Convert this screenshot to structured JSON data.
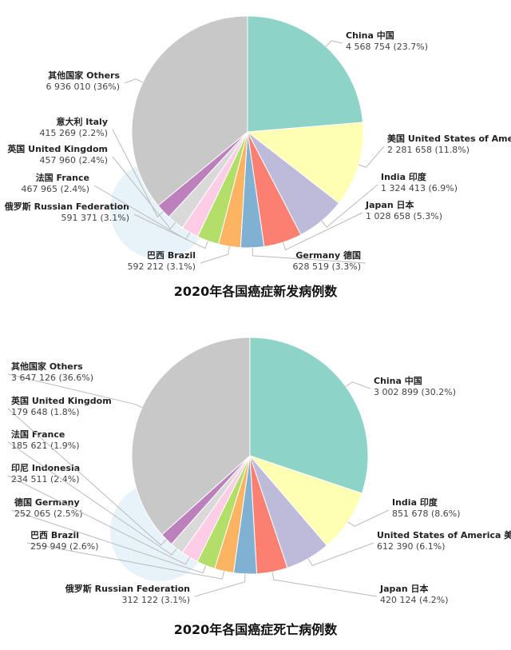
{
  "chart_data": [
    {
      "type": "pie",
      "title": "2020年各国癌症新发病例数",
      "categories": [
        "China 中国",
        "美国 United States of America",
        "India 印度",
        "Japan 日本",
        "Germany 德国",
        "巴西 Brazil",
        "俄罗斯 Russian Federation",
        "法国 France",
        "英国 United Kingdom",
        "意大利 Italy",
        "其他国家 Others"
      ],
      "values": [
        4568754,
        2281658,
        1324413,
        1028658,
        628519,
        592212,
        591371,
        467965,
        457960,
        415269,
        6936010
      ],
      "value_labels": [
        "4 568 754 (23.7%)",
        "2 281 658 (11.8%)",
        "1 324 413 (6.9%)",
        "1 028 658 (5.3%)",
        "628 519 (3.3%)",
        "592 212 (3.1%)",
        "591 371 (3.1%)",
        "467 965 (2.4%)",
        "457 960 (2.4%)",
        "415 269 (2.2%)",
        "6 936 010 (36%)"
      ],
      "colors": [
        "#8dd3c7",
        "#ffffb3",
        "#bebada",
        "#fb8072",
        "#80b1d3",
        "#fdb462",
        "#b3de69",
        "#fccde5",
        "#d9d9d9",
        "#bc80bd",
        "#c8c8c8"
      ]
    },
    {
      "type": "pie",
      "title": "2020年各国癌症死亡病例数",
      "categories": [
        "China 中国",
        "India 印度",
        "United States of America 美国",
        "Japan 日本",
        "俄罗斯 Russian Federation",
        "巴西 Brazil",
        "德国 Germany",
        "印尼 Indonesia",
        "法国 France",
        "英国 United Kingdom",
        "其他国家 Others"
      ],
      "values": [
        3002899,
        851678,
        612390,
        420124,
        312122,
        259949,
        252065,
        234511,
        185621,
        179648,
        3647126
      ],
      "value_labels": [
        "3 002 899 (30.2%)",
        "851 678 (8.6%)",
        "612 390 (6.1%)",
        "420 124 (4.2%)",
        "312 122 (3.1%)",
        "259 949 (2.6%)",
        "252 065 (2.5%)",
        "234 511 (2.4%)",
        "185 621 (1.9%)",
        "179 648 (1.8%)",
        "3 647 126 (36.6%)"
      ],
      "colors": [
        "#8dd3c7",
        "#ffffb3",
        "#bebada",
        "#fb8072",
        "#80b1d3",
        "#fdb462",
        "#b3de69",
        "#fccde5",
        "#d9d9d9",
        "#bc80bd",
        "#c8c8c8"
      ]
    }
  ]
}
